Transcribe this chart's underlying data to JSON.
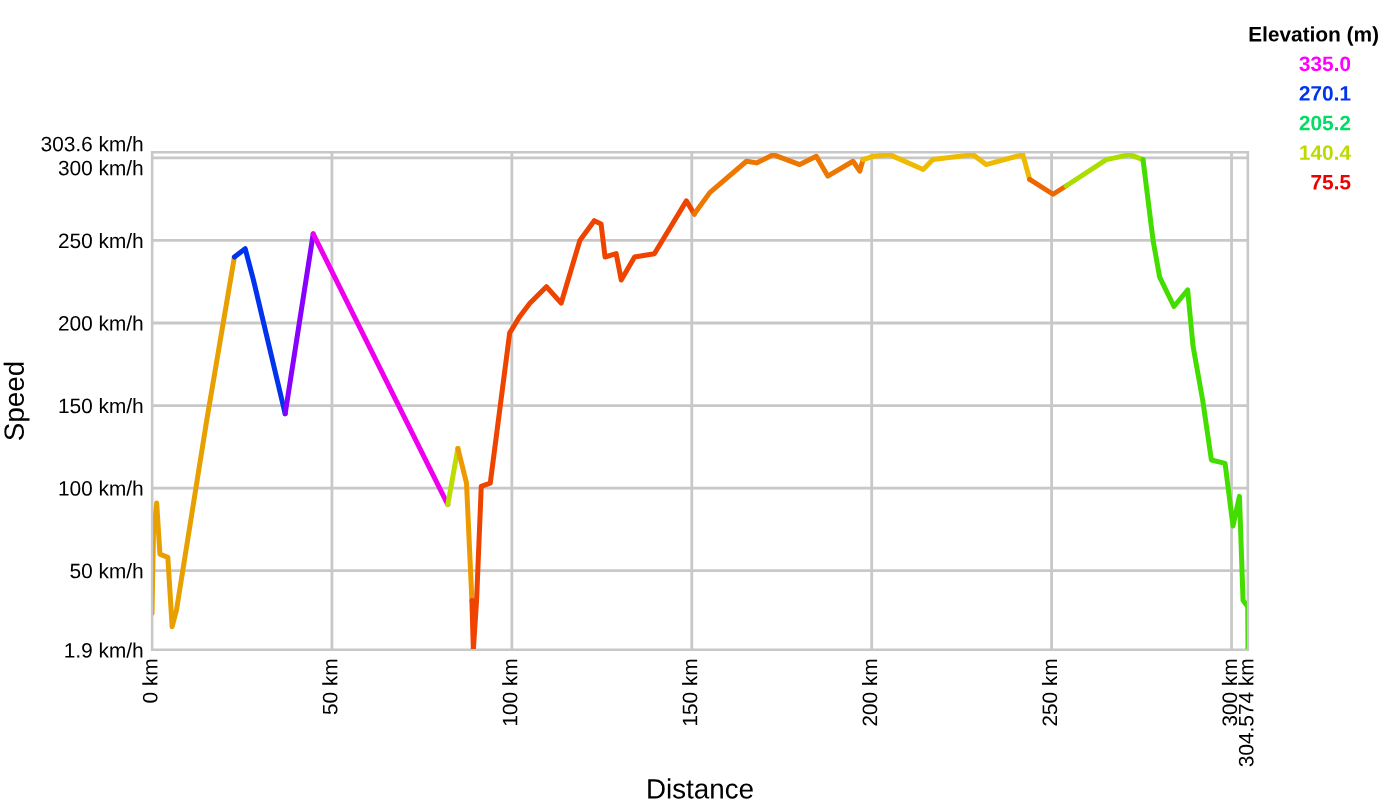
{
  "chart_data": {
    "type": "line",
    "xlabel": "Distance",
    "ylabel": "Speed",
    "legend_title": "Elevation (m)",
    "annotations": [
      "335.0",
      "270.1",
      "205.2",
      "140.4",
      "75.5"
    ],
    "xlim": [
      0,
      304.574
    ],
    "ylim": [
      1.9,
      303.6
    ],
    "xticks": [
      {
        "value": 0,
        "label": "0 km"
      },
      {
        "value": 50,
        "label": "50 km"
      },
      {
        "value": 100,
        "label": "100 km"
      },
      {
        "value": 150,
        "label": "150 km"
      },
      {
        "value": 200,
        "label": "200 km"
      },
      {
        "value": 250,
        "label": "250 km"
      },
      {
        "value": 300,
        "label": "300 km"
      },
      {
        "value": 304.574,
        "label": "304.574 km"
      }
    ],
    "yticks": [
      {
        "value": 1.9,
        "label": "1.9 km/h"
      },
      {
        "value": 50,
        "label": "50 km/h"
      },
      {
        "value": 100,
        "label": "100 km/h"
      },
      {
        "value": 150,
        "label": "150 km/h"
      },
      {
        "value": 200,
        "label": "200 km/h"
      },
      {
        "value": 250,
        "label": "250 km/h"
      },
      {
        "value": 300,
        "label": "300 km/h"
      },
      {
        "value": 303.6,
        "label": "303.6 km/h"
      }
    ],
    "grid": true,
    "series": [
      {
        "color": "#e8a000",
        "x": [
          0,
          0.4,
          1.3,
          2.2,
          4.4,
          5.6,
          6.8,
          15.2,
          22.9
        ],
        "values": [
          24,
          72,
          91,
          60,
          58,
          16,
          26,
          141,
          240
        ]
      },
      {
        "color": "#0033ee",
        "x": [
          22.9,
          25.9,
          28.2,
          37
        ],
        "values": [
          240,
          245,
          226,
          145
        ]
      },
      {
        "color": "#8800ff",
        "x": [
          37,
          44.8
        ],
        "values": [
          145,
          254
        ]
      },
      {
        "color": "#ee00ee",
        "x": [
          44.8,
          82.2
        ],
        "values": [
          254,
          90
        ]
      },
      {
        "color": "#bbdd00",
        "x": [
          82.2,
          85
        ],
        "values": [
          90,
          124
        ]
      },
      {
        "color": "#ee9900",
        "x": [
          85,
          87.4,
          88.9
        ],
        "values": [
          124,
          103,
          32
        ]
      },
      {
        "color": "#ee4400",
        "x": [
          88.9,
          89.3,
          90.2,
          91.5,
          94,
          99.4,
          102.2,
          105,
          109.6,
          113.7,
          118.9,
          122.9,
          124.8,
          125.9,
          129,
          130.4,
          134.1,
          139.6,
          148.5,
          150.7
        ],
        "values": [
          32,
          1.9,
          32,
          101,
          103,
          194,
          204,
          212,
          222,
          212,
          250,
          262,
          260,
          240,
          242,
          226,
          240,
          242,
          274,
          266
        ]
      },
      {
        "color": "#ee7700",
        "x": [
          150.7,
          155,
          165.2,
          168,
          172.6,
          180,
          184.6,
          187.8,
          194.8,
          196.7,
          197.6
        ],
        "values": [
          266,
          279,
          298,
          297,
          302,
          296,
          301,
          289,
          298,
          292,
          299
        ]
      },
      {
        "color": "#eebb00",
        "x": [
          197.6,
          200.4,
          205,
          214.3,
          217,
          228.2,
          231.8,
          242,
          243.9
        ],
        "values": [
          299,
          301,
          302,
          293,
          299,
          302,
          296,
          302,
          287
        ]
      },
      {
        "color": "#ee6600",
        "x": [
          243.9,
          250.4,
          254
        ],
        "values": [
          287,
          278,
          283
        ]
      },
      {
        "color": "#aadd00",
        "x": [
          254,
          265.2,
          271.7,
          275.4
        ],
        "values": [
          283,
          299,
          302,
          299
        ]
      },
      {
        "color": "#44dd00",
        "x": [
          275.4,
          278.2,
          280,
          284,
          287.8,
          289.3,
          292,
          294.4,
          298.2,
          300.4,
          302.2,
          303.2,
          304.5,
          304.574
        ],
        "values": [
          299,
          250,
          228,
          210,
          220,
          186,
          153,
          117,
          115,
          77,
          95,
          32,
          28,
          1.9
        ]
      }
    ]
  }
}
